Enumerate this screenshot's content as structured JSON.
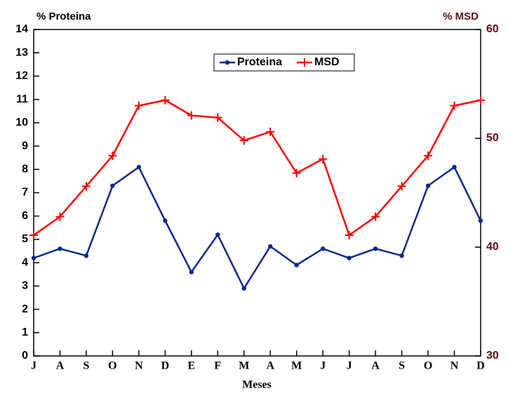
{
  "chart_data": {
    "type": "line",
    "y_label": "% Proteina",
    "y2_label": "% MSD",
    "x_label": "Meses",
    "categories": [
      "J",
      "A",
      "S",
      "O",
      "N",
      "D",
      "E",
      "F",
      "M",
      "A",
      "M",
      "J",
      "J",
      "A",
      "S",
      "O",
      "N",
      "D"
    ],
    "series": [
      {
        "name": "Proteina",
        "color": "#0a2a8a",
        "marker": "circle",
        "values": [
          4.2,
          4.6,
          4.3,
          7.3,
          8.1,
          5.8,
          3.6,
          5.2,
          2.9,
          4.7,
          3.9,
          4.6,
          4.2,
          4.6,
          4.3,
          7.3,
          8.1,
          5.8
        ]
      },
      {
        "name": "MSD",
        "color": "#ff0000",
        "marker": "plus",
        "axis": "y2",
        "values": [
          41.1,
          42.8,
          45.6,
          48.4,
          53.0,
          53.5,
          52.1,
          51.9,
          49.8,
          50.6,
          46.8,
          48.1,
          41.1,
          42.8,
          45.6,
          48.4,
          53.0,
          53.5
        ]
      }
    ],
    "ylim": [
      0,
      14
    ],
    "yticks": [
      0,
      1,
      2,
      3,
      4,
      5,
      6,
      7,
      8,
      9,
      10,
      11,
      12,
      13,
      14
    ],
    "y2lim": [
      30,
      60
    ],
    "y2ticks": [
      30,
      40,
      50,
      60
    ],
    "y2_color": "#5a1010",
    "legend": "top-center"
  }
}
